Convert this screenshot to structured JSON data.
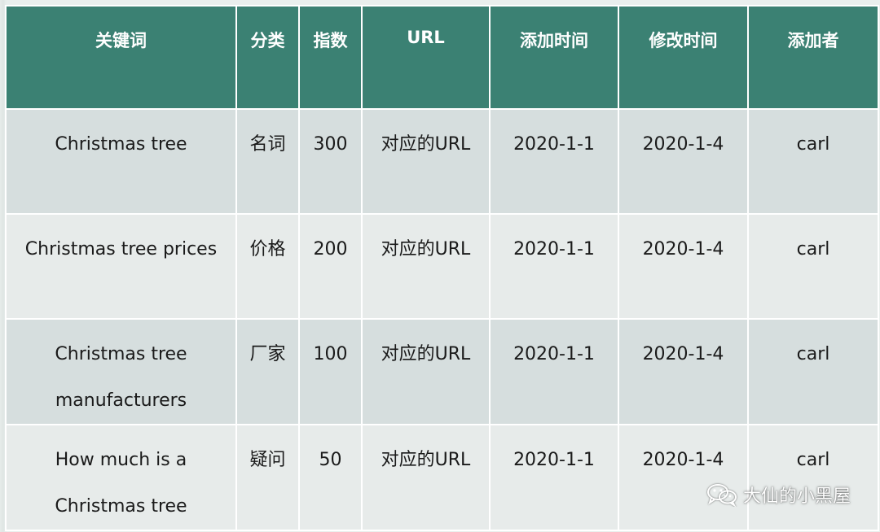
{
  "headers": [
    "关键词",
    "分类",
    "指数",
    "URL",
    "添加时间",
    "修改时间",
    "添加者"
  ],
  "rows": [
    {
      "keyword": [
        "Christmas tree"
      ],
      "category": "名词",
      "index": "300",
      "url": "对应的URL",
      "added": "2020-1-1",
      "modified": "2020-1-4",
      "author": "carl"
    },
    {
      "keyword": [
        "Christmas tree prices"
      ],
      "category": "价格",
      "index": "200",
      "url": "对应的URL",
      "added": "2020-1-1",
      "modified": "2020-1-4",
      "author": "carl"
    },
    {
      "keyword": [
        "Christmas tree",
        "manufacturers"
      ],
      "category": "厂家",
      "index": "100",
      "url": "对应的URL",
      "added": "2020-1-1",
      "modified": "2020-1-4",
      "author": "carl"
    },
    {
      "keyword": [
        "How much is a",
        "Christmas tree"
      ],
      "category": "疑问",
      "index": "50",
      "url": "对应的URL",
      "added": "2020-1-1",
      "modified": "2020-1-4",
      "author": "carl"
    }
  ],
  "watermark": {
    "text": "大仙的小黑屋",
    "icon": "wechat-icon"
  }
}
